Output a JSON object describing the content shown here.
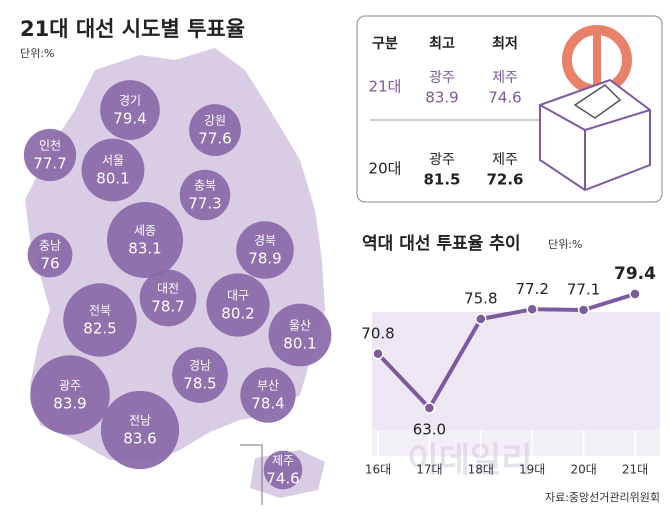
{
  "header": {
    "title": "21대 대선 시도별 투표율",
    "unit": "단위:%"
  },
  "regions": [
    {
      "name": "경기",
      "value": 79.4
    },
    {
      "name": "강원",
      "value": 77.6
    },
    {
      "name": "인천",
      "value": 77.7
    },
    {
      "name": "서울",
      "value": 80.1
    },
    {
      "name": "충북",
      "value": 77.3
    },
    {
      "name": "세종",
      "value": 83.1
    },
    {
      "name": "충남",
      "value": 76.0
    },
    {
      "name": "경북",
      "value": 78.9
    },
    {
      "name": "대전",
      "value": 78.7
    },
    {
      "name": "대구",
      "value": 80.2
    },
    {
      "name": "전북",
      "value": 82.5
    },
    {
      "name": "울산",
      "value": 80.1
    },
    {
      "name": "경남",
      "value": 78.5
    },
    {
      "name": "광주",
      "value": 83.9
    },
    {
      "name": "부산",
      "value": 78.4
    },
    {
      "name": "전남",
      "value": 83.6
    },
    {
      "name": "제주",
      "value": 74.6
    }
  ],
  "table": {
    "headers": [
      "구분",
      "최고",
      "최저"
    ],
    "rows": [
      [
        "21대",
        "광주",
        83.9,
        "제주",
        74.6
      ],
      [
        "20대",
        "광주",
        81.5,
        "제주",
        72.6
      ]
    ]
  },
  "chart_data": {
    "type": "line",
    "title": "역대 대선 투표율 추이",
    "unit": "단위:%",
    "categories": [
      "16대",
      "17대",
      "18대",
      "19대",
      "20대",
      "21대"
    ],
    "values": [
      70.8,
      63.0,
      75.8,
      77.2,
      77.1,
      79.4
    ],
    "value_labels": [
      "70.8",
      "63.0",
      "75.8",
      "77.2",
      "77.1",
      "79.4"
    ],
    "color": "#7b5a9e"
  },
  "source": "자료:중앙선거관리위원회",
  "watermark": "이데일리"
}
